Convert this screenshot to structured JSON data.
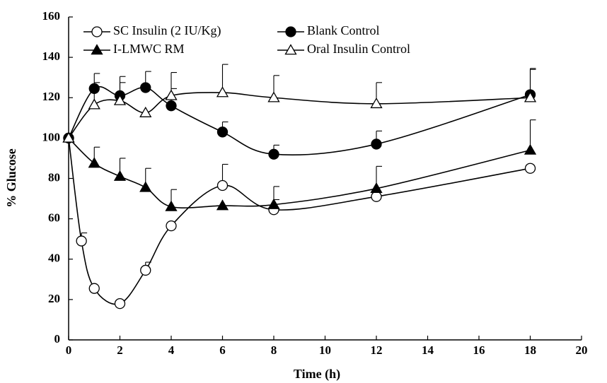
{
  "chart_data": {
    "type": "line",
    "x_label": "Time (h)",
    "y_label": "% Glucose",
    "xlim": [
      0,
      20
    ],
    "xticks": [
      0,
      2,
      4,
      6,
      8,
      10,
      12,
      14,
      16,
      18,
      20
    ],
    "ylim": [
      0,
      160
    ],
    "yticks": [
      0,
      20,
      40,
      60,
      80,
      100,
      120,
      140,
      160
    ],
    "grid": false,
    "legend": "top-left",
    "smooth": true,
    "series": [
      {
        "name": "SC Insulin (2 IU/Kg)",
        "color": "#000000",
        "marker": "circle",
        "filled": false,
        "x": [
          0,
          0.5,
          1,
          2,
          3,
          4,
          6,
          8,
          12,
          18
        ],
        "values": [
          100,
          49,
          25.5,
          18,
          34.5,
          56.5,
          76.5,
          64.5,
          71,
          85
        ],
        "errors": [
          0,
          4,
          0,
          0,
          4,
          0,
          10.5,
          5,
          0,
          0
        ]
      },
      {
        "name": "Blank Control",
        "color": "#000000",
        "marker": "circle",
        "filled": true,
        "x": [
          0,
          1,
          2,
          3,
          4,
          6,
          8,
          12,
          18
        ],
        "values": [
          100,
          124.5,
          121,
          125,
          116,
          103,
          92,
          97,
          121.5
        ],
        "errors": [
          0,
          7.5,
          6.5,
          8,
          8.5,
          5,
          4.5,
          6.5,
          13
        ]
      },
      {
        "name": "I-LMWC RM",
        "color": "#000000",
        "marker": "triangle",
        "filled": true,
        "x": [
          0,
          1,
          2,
          3,
          4,
          6,
          8,
          12,
          18
        ],
        "values": [
          100,
          87.5,
          81,
          75.5,
          66,
          66.5,
          67,
          75,
          94
        ],
        "errors": [
          0,
          8,
          9,
          9.5,
          8.5,
          0,
          9,
          11,
          15
        ]
      },
      {
        "name": "Oral Insulin Control",
        "color": "#000000",
        "marker": "triangle",
        "filled": false,
        "x": [
          0,
          1,
          2,
          3,
          4,
          6,
          8,
          12,
          18
        ],
        "values": [
          100,
          116.5,
          118.5,
          112.5,
          121,
          122.5,
          120,
          117,
          120
        ],
        "errors": [
          0,
          11,
          12,
          0,
          11.5,
          14,
          11,
          10.5,
          14
        ]
      }
    ]
  }
}
